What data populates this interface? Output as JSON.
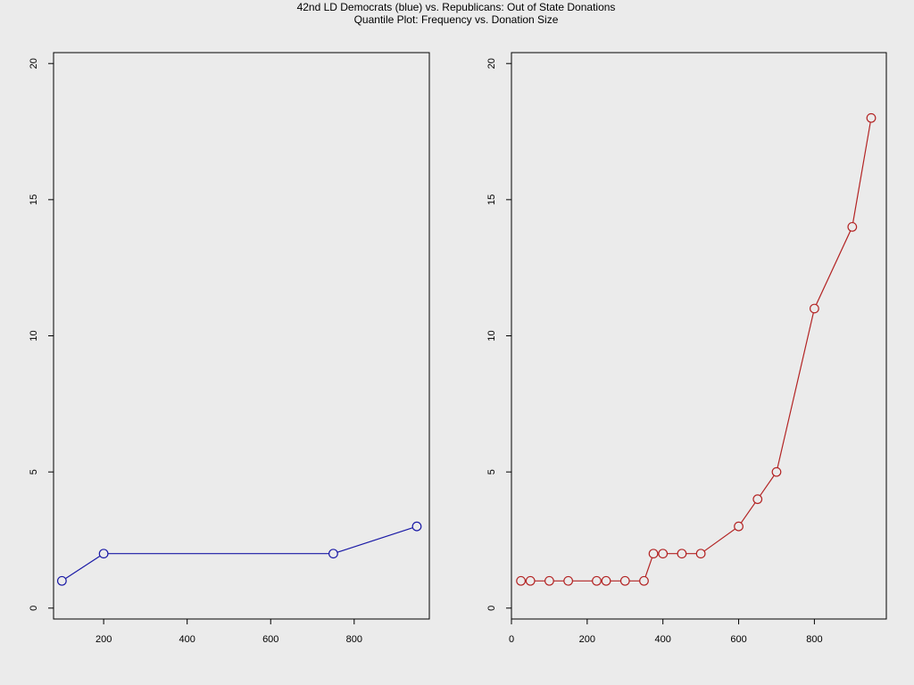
{
  "title_line1": "42nd LD Democrats (blue) vs. Republicans: Out of State Donations",
  "title_line2": "Quantile Plot: Frequency vs. Donation Size",
  "chart_data": [
    {
      "type": "line",
      "panel": "left",
      "markers": "open-circle",
      "color": "#1a1aa6",
      "xlim": [
        80,
        980
      ],
      "ylim": [
        -0.4,
        20.4
      ],
      "xticks": [
        200,
        400,
        600,
        800
      ],
      "yticks": [
        0,
        5,
        10,
        15,
        20
      ],
      "xtick_labels": [
        "200",
        "400",
        "600",
        "800"
      ],
      "ytick_labels": [
        "0",
        "5",
        "10",
        "15",
        "20"
      ],
      "x": [
        100,
        200,
        750,
        950
      ],
      "y": [
        1,
        2,
        2,
        3
      ]
    },
    {
      "type": "line",
      "panel": "right",
      "markers": "open-circle",
      "color": "#b32424",
      "xlim": [
        0,
        990
      ],
      "ylim": [
        -0.4,
        20.4
      ],
      "xticks": [
        0,
        200,
        400,
        600,
        800
      ],
      "yticks": [
        0,
        5,
        10,
        15,
        20
      ],
      "xtick_labels": [
        "0",
        "200",
        "400",
        "600",
        "800"
      ],
      "ytick_labels": [
        "0",
        "5",
        "10",
        "15",
        "20"
      ],
      "x": [
        25,
        50,
        100,
        150,
        225,
        250,
        300,
        350,
        375,
        400,
        450,
        500,
        600,
        650,
        700,
        800,
        900,
        950
      ],
      "y": [
        1,
        1,
        1,
        1,
        1,
        1,
        1,
        1,
        2,
        2,
        2,
        2,
        3,
        4,
        5,
        11,
        14,
        18
      ]
    }
  ]
}
